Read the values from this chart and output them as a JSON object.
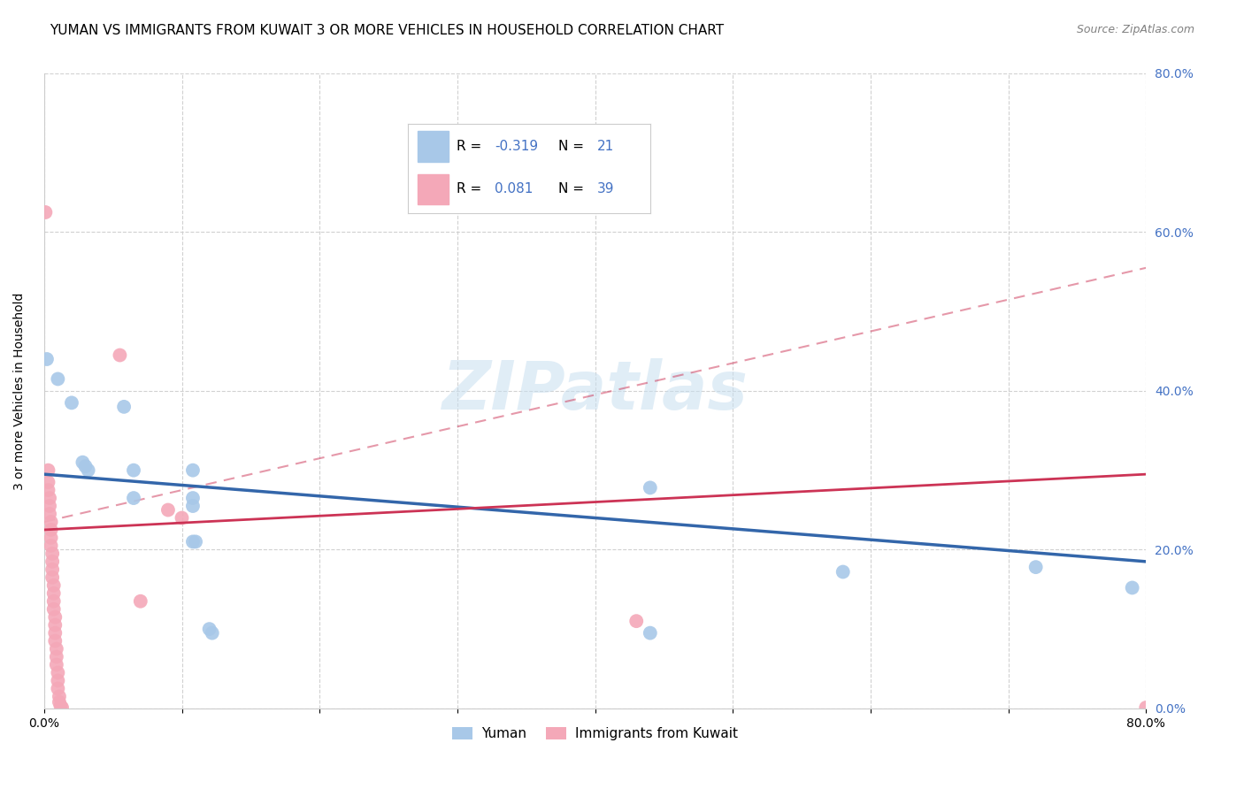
{
  "title": "YUMAN VS IMMIGRANTS FROM KUWAIT 3 OR MORE VEHICLES IN HOUSEHOLD CORRELATION CHART",
  "source": "Source: ZipAtlas.com",
  "ylabel": "3 or more Vehicles in Household",
  "legend_label1": "Yuman",
  "legend_label2": "Immigrants from Kuwait",
  "R1": -0.319,
  "N1": 21,
  "R2": 0.081,
  "N2": 39,
  "color_blue": "#a8c8e8",
  "color_pink": "#f4a8b8",
  "line_blue": "#3366aa",
  "line_pink": "#cc3355",
  "watermark": "ZIPatlas",
  "blue_points": [
    [
      0.002,
      0.44
    ],
    [
      0.01,
      0.415
    ],
    [
      0.02,
      0.385
    ],
    [
      0.028,
      0.31
    ],
    [
      0.03,
      0.305
    ],
    [
      0.032,
      0.3
    ],
    [
      0.058,
      0.38
    ],
    [
      0.065,
      0.3
    ],
    [
      0.065,
      0.265
    ],
    [
      0.108,
      0.3
    ],
    [
      0.108,
      0.265
    ],
    [
      0.108,
      0.255
    ],
    [
      0.108,
      0.21
    ],
    [
      0.11,
      0.21
    ],
    [
      0.12,
      0.1
    ],
    [
      0.122,
      0.095
    ],
    [
      0.44,
      0.278
    ],
    [
      0.44,
      0.095
    ],
    [
      0.58,
      0.172
    ],
    [
      0.72,
      0.178
    ],
    [
      0.79,
      0.152
    ]
  ],
  "pink_points": [
    [
      0.001,
      0.625
    ],
    [
      0.003,
      0.3
    ],
    [
      0.003,
      0.285
    ],
    [
      0.003,
      0.275
    ],
    [
      0.004,
      0.265
    ],
    [
      0.004,
      0.255
    ],
    [
      0.004,
      0.245
    ],
    [
      0.005,
      0.235
    ],
    [
      0.005,
      0.225
    ],
    [
      0.005,
      0.215
    ],
    [
      0.005,
      0.205
    ],
    [
      0.006,
      0.195
    ],
    [
      0.006,
      0.185
    ],
    [
      0.006,
      0.175
    ],
    [
      0.006,
      0.165
    ],
    [
      0.007,
      0.155
    ],
    [
      0.007,
      0.145
    ],
    [
      0.007,
      0.135
    ],
    [
      0.007,
      0.125
    ],
    [
      0.008,
      0.115
    ],
    [
      0.008,
      0.105
    ],
    [
      0.008,
      0.095
    ],
    [
      0.008,
      0.085
    ],
    [
      0.009,
      0.075
    ],
    [
      0.009,
      0.065
    ],
    [
      0.009,
      0.055
    ],
    [
      0.01,
      0.045
    ],
    [
      0.01,
      0.035
    ],
    [
      0.01,
      0.025
    ],
    [
      0.011,
      0.015
    ],
    [
      0.011,
      0.008
    ],
    [
      0.012,
      0.003
    ],
    [
      0.013,
      0.001
    ],
    [
      0.055,
      0.445
    ],
    [
      0.07,
      0.135
    ],
    [
      0.09,
      0.25
    ],
    [
      0.1,
      0.24
    ],
    [
      0.43,
      0.11
    ],
    [
      0.8,
      0.001
    ]
  ],
  "blue_line": [
    [
      0.0,
      0.295
    ],
    [
      0.8,
      0.185
    ]
  ],
  "pink_line": [
    [
      0.0,
      0.225
    ],
    [
      0.8,
      0.295
    ]
  ],
  "pink_line_dashed": [
    [
      0.0,
      0.235
    ],
    [
      0.8,
      0.555
    ]
  ],
  "xlim": [
    0.0,
    0.8
  ],
  "ylim": [
    0.0,
    0.8
  ],
  "xticks": [
    0.0,
    0.1,
    0.2,
    0.3,
    0.4,
    0.5,
    0.6,
    0.7,
    0.8
  ],
  "yticks": [
    0.0,
    0.2,
    0.4,
    0.6,
    0.8
  ],
  "grid_color": "#cccccc",
  "background_color": "#ffffff",
  "tick_color": "#4472c4",
  "title_fontsize": 11,
  "axis_fontsize": 10,
  "tick_fontsize": 10,
  "source_fontsize": 9
}
